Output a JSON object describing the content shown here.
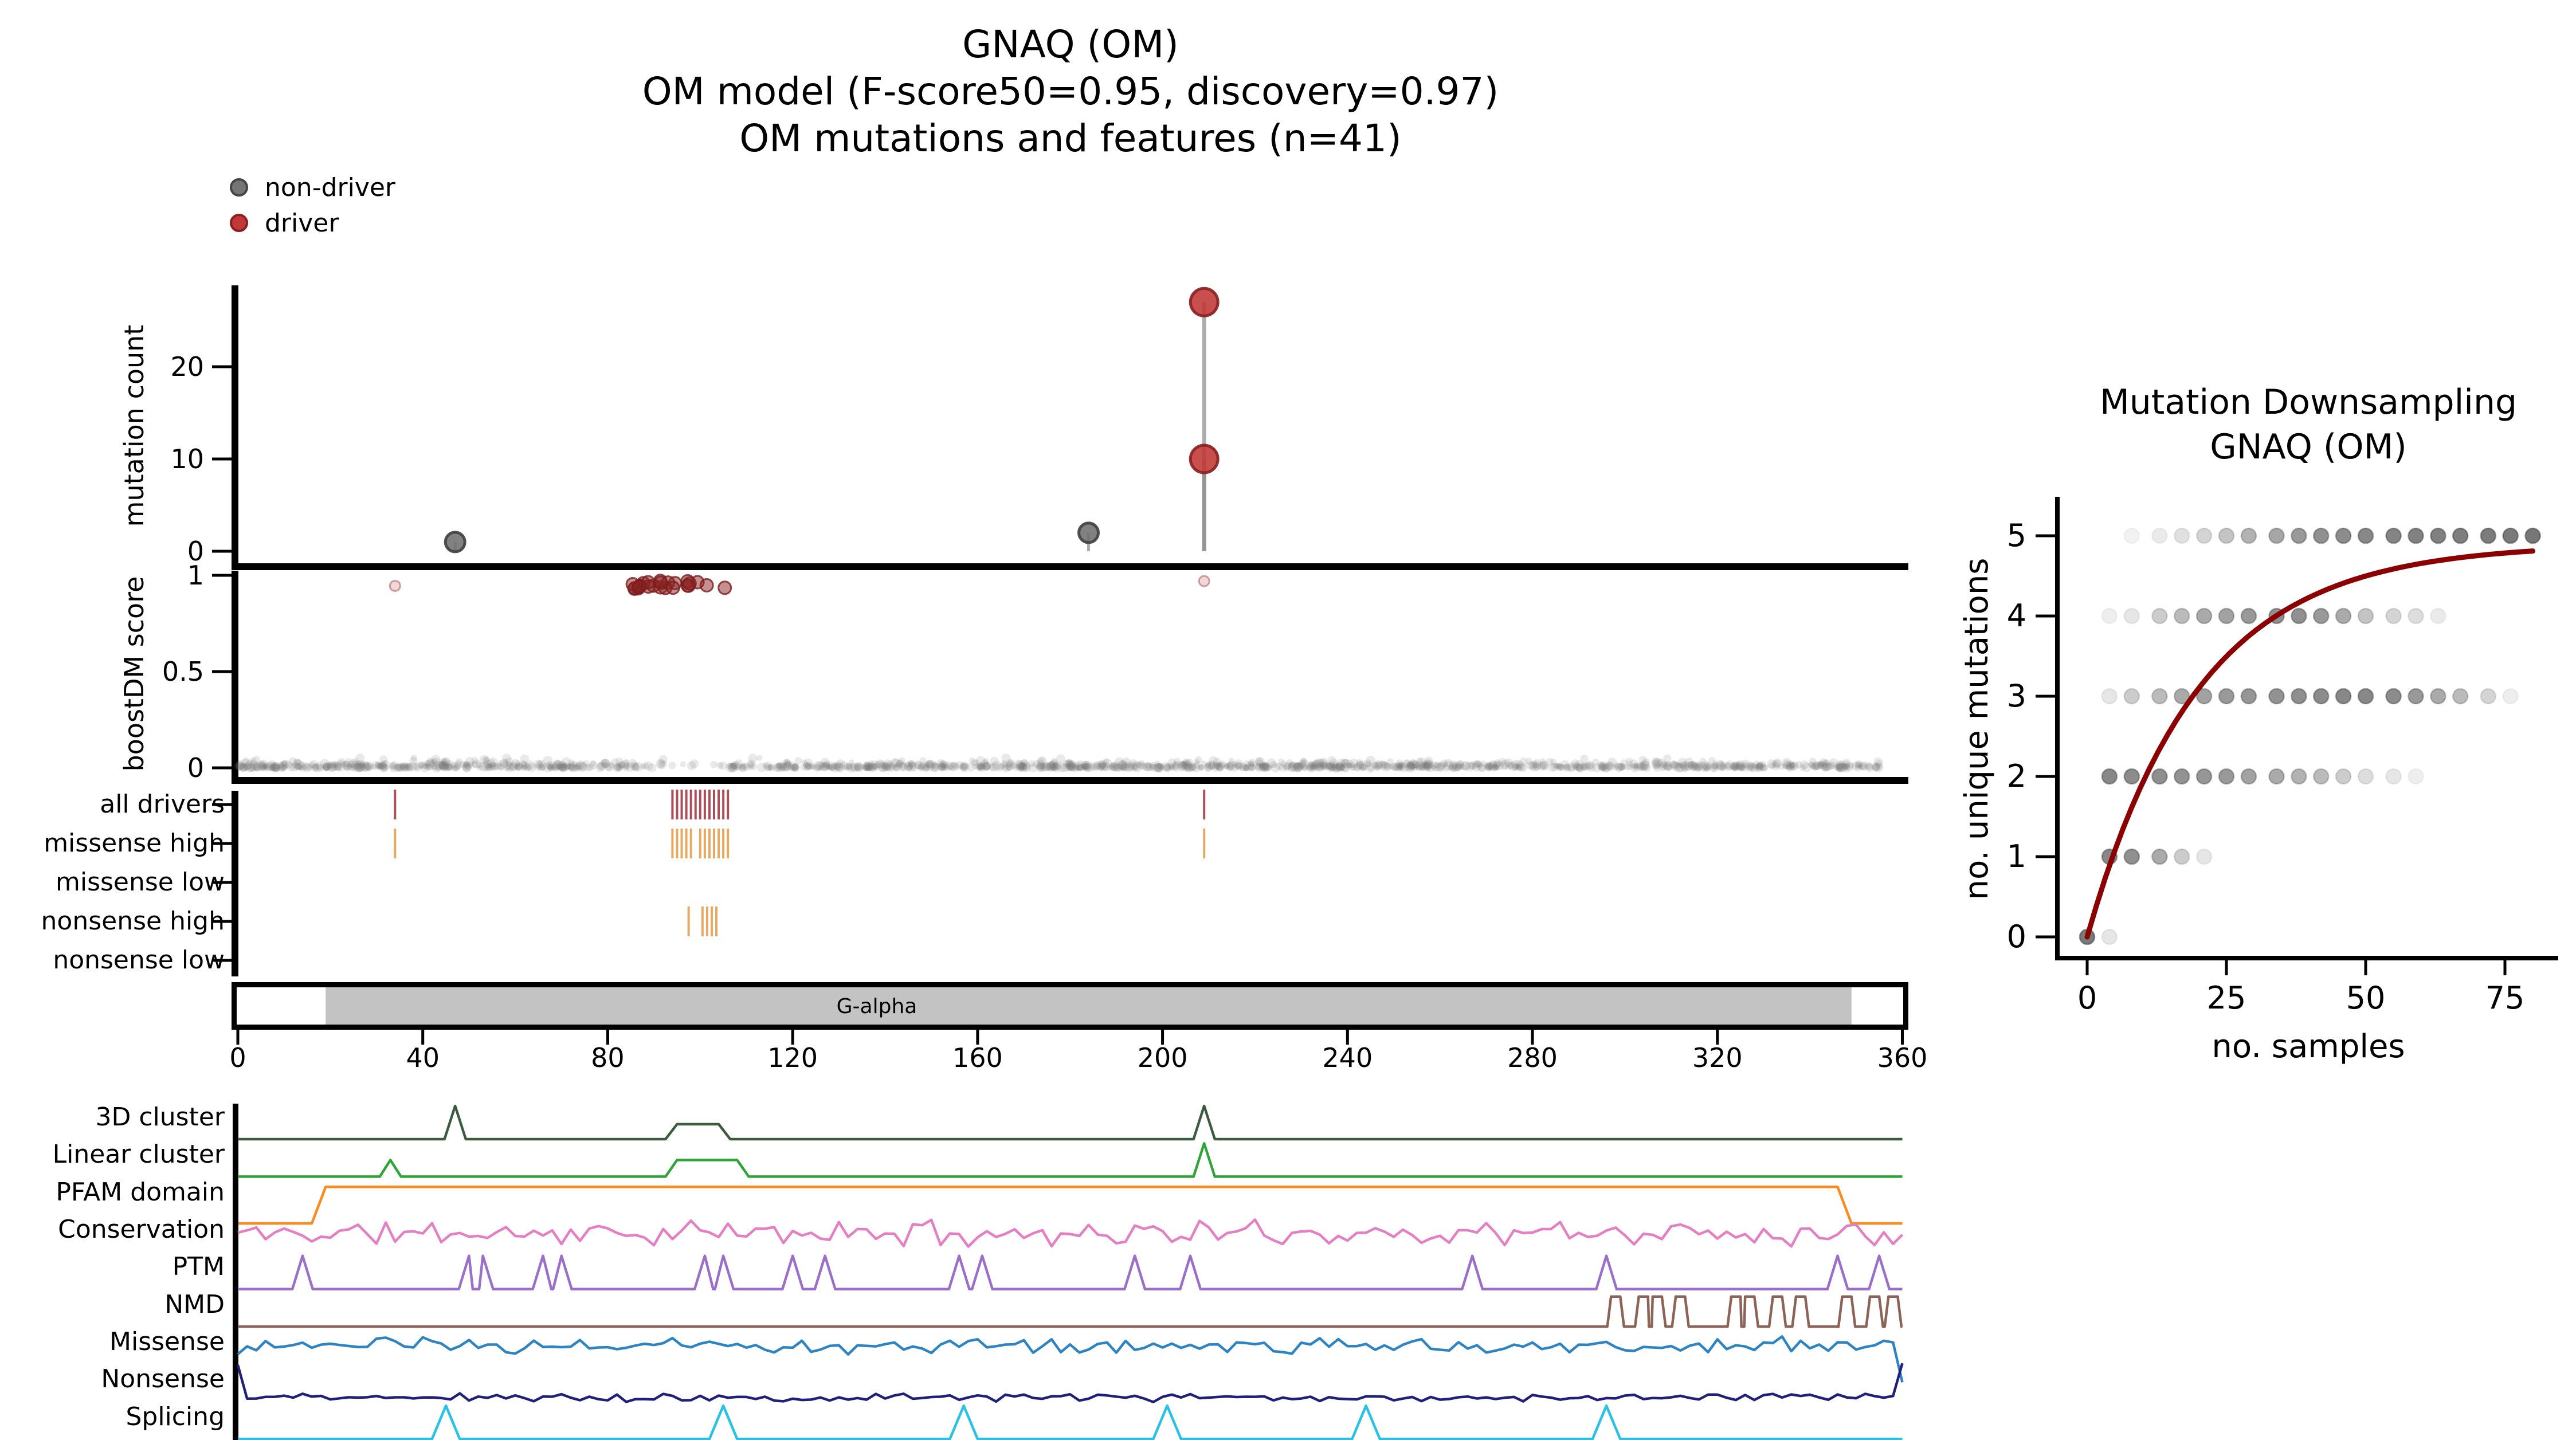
{
  "title": {
    "line1": "GNAQ (OM)",
    "line2": "OM model (F-score50=0.95, discovery=0.97)",
    "line3": "OM mutations and features (n=41)"
  },
  "legend": {
    "items": [
      {
        "label": "non-driver",
        "color": "#757575",
        "edge": "#454545"
      },
      {
        "label": "driver",
        "color": "#c23737",
        "edge": "#8a1f1f"
      }
    ]
  },
  "colors": {
    "axis": "#000000",
    "stem": "#8a8a8a",
    "nondriver_dot": "#707070",
    "driver_dot": "#c23737",
    "boost_cluster": "#8b2222",
    "all_drivers_tick": "#9e2f3d",
    "high_impact_tick": "#e09a47",
    "domain_fill": "#c3c3c3",
    "downsampling_curve": "#8b0000"
  },
  "chart_data": [
    {
      "id": "needle_plot",
      "type": "scatter",
      "ylabel": "mutation count",
      "yticks": [
        0,
        10,
        20
      ],
      "ylim": [
        0,
        29
      ],
      "xlim": [
        0,
        360
      ],
      "points": [
        {
          "pos": 47,
          "count": 1,
          "class": "non-driver"
        },
        {
          "pos": 184,
          "count": 2,
          "class": "non-driver"
        },
        {
          "pos": 209,
          "count": 10,
          "class": "driver"
        },
        {
          "pos": 209,
          "count": 27,
          "class": "driver"
        }
      ]
    },
    {
      "id": "boostdm_scores",
      "type": "scatter",
      "ylabel": "boostDM score",
      "yticks": [
        0,
        0.5,
        1
      ],
      "ylim": [
        0,
        1
      ],
      "driver_cluster": {
        "pos_range": [
          85,
          107
        ],
        "score_range": [
          0.93,
          0.975
        ],
        "n": 25
      },
      "driver_outliers": [
        {
          "pos": 34,
          "score": 0.945
        },
        {
          "pos": 209,
          "score": 0.97
        }
      ],
      "nondriver_band": {
        "pos_range": [
          0,
          355
        ],
        "score_range": [
          0,
          0.06
        ],
        "n": 1500,
        "note": "dense non-driver scores near 0"
      }
    },
    {
      "id": "driver_tracks",
      "type": "ticks",
      "rows": [
        {
          "label": "all drivers",
          "color": "#9e2f3d",
          "positions": [
            34,
            94,
            95,
            96,
            97,
            98,
            99,
            100,
            101,
            102,
            103,
            104,
            105,
            106,
            209
          ]
        },
        {
          "label": "missense high",
          "color": "#e09a47",
          "positions": [
            34,
            94,
            95,
            96,
            97,
            98,
            100,
            101,
            102,
            103,
            104,
            105,
            106,
            209
          ]
        },
        {
          "label": "missense low",
          "color": "#e09a47",
          "positions": []
        },
        {
          "label": "nonsense high",
          "color": "#e09a47",
          "positions": [
            97.5,
            100.5,
            101.5,
            102.5,
            103.5
          ]
        },
        {
          "label": "nonsense low",
          "color": "#e09a47",
          "positions": []
        }
      ]
    },
    {
      "id": "protein_domain",
      "type": "domain_bar",
      "protein_length": 360,
      "domains": [
        {
          "name": "G-alpha",
          "start": 19,
          "end": 349,
          "color": "#c3c3c3",
          "label_pos": 138
        }
      ],
      "xticks": [
        0,
        40,
        80,
        120,
        160,
        200,
        240,
        280,
        320,
        360
      ]
    },
    {
      "id": "feature_tracks",
      "type": "line-tracks",
      "x_range": [
        0,
        360
      ],
      "tracks": [
        {
          "label": "3D cluster",
          "color": "#3c5a3e",
          "kind": "peaks",
          "peaks": [
            {
              "pos": 47,
              "h": 1
            },
            {
              "pos": 209,
              "h": 1
            }
          ],
          "plateaus": [
            {
              "start": 95,
              "end": 104,
              "h": 0.45
            }
          ]
        },
        {
          "label": "Linear cluster",
          "color": "#2fa437",
          "kind": "peaks",
          "peaks": [
            {
              "pos": 33,
              "h": 0.5
            },
            {
              "pos": 209,
              "h": 1
            }
          ],
          "plateaus": [
            {
              "start": 95,
              "end": 108,
              "h": 0.5
            }
          ]
        },
        {
          "label": "PFAM domain",
          "color": "#fb8b1e",
          "kind": "step",
          "high_start": 18,
          "high_end": 347
        },
        {
          "label": "Conservation",
          "color": "#e57fc3",
          "kind": "noise",
          "mean": 0.55,
          "amp": 0.45,
          "seed": 11
        },
        {
          "label": "PTM",
          "color": "#9a6fc9",
          "kind": "spikes",
          "positions": [
            14,
            50,
            53,
            66,
            70,
            101,
            105,
            120,
            127,
            156,
            161,
            194,
            206,
            267,
            296,
            346,
            355
          ],
          "h": 1
        },
        {
          "label": "NMD",
          "color": "#8d6358",
          "kind": "pulses",
          "positions": [
            298,
            304,
            307,
            312,
            324,
            327,
            333,
            338,
            348,
            354,
            358
          ],
          "h": 0.9
        },
        {
          "label": "Missense",
          "color": "#2e84c2",
          "kind": "noise",
          "mean": 0.55,
          "amp": 0.3,
          "seed": 23,
          "end_dip": true
        },
        {
          "label": "Nonsense",
          "color": "#20207a",
          "kind": "noise",
          "mean": 0.12,
          "amp": 0.14,
          "seed": 37,
          "start_spike": true,
          "end_spike": true
        },
        {
          "label": "Splicing",
          "color": "#29c2e6",
          "kind": "spikes",
          "positions": [
            45,
            105,
            157,
            201,
            244,
            296
          ],
          "h": 1
        }
      ]
    },
    {
      "id": "mutation_downsampling",
      "type": "scatter",
      "title_line1": "Mutation Downsampling",
      "title_line2": "GNAQ (OM)",
      "xlabel": "no. samples",
      "ylabel": "no. unique mutations",
      "xticks": [
        0,
        25,
        50,
        75
      ],
      "yticks": [
        0,
        1,
        2,
        3,
        4,
        5
      ],
      "xlim": [
        0,
        82
      ],
      "ylim": [
        0,
        5.3
      ],
      "dot_rows": [
        {
          "y": 0,
          "x": [
            0,
            4
          ],
          "alpha": [
            0.78,
            0.15
          ]
        },
        {
          "y": 1,
          "x": [
            4,
            8,
            13,
            17,
            21
          ],
          "alpha": [
            0.7,
            0.65,
            0.5,
            0.3,
            0.15
          ]
        },
        {
          "y": 2,
          "x": [
            4,
            8,
            13,
            17,
            21,
            25,
            29,
            34,
            38,
            42,
            46,
            50,
            55,
            59
          ],
          "alpha": [
            0.7,
            0.68,
            0.66,
            0.64,
            0.62,
            0.6,
            0.55,
            0.5,
            0.45,
            0.4,
            0.3,
            0.2,
            0.15,
            0.1
          ]
        },
        {
          "y": 3,
          "x": [
            4,
            8,
            13,
            17,
            21,
            25,
            29,
            34,
            38,
            42,
            46,
            50,
            55,
            59,
            63,
            67,
            72,
            76
          ],
          "alpha": [
            0.15,
            0.3,
            0.4,
            0.5,
            0.55,
            0.6,
            0.62,
            0.64,
            0.66,
            0.68,
            0.7,
            0.7,
            0.68,
            0.6,
            0.5,
            0.4,
            0.25,
            0.1
          ]
        },
        {
          "y": 4,
          "x": [
            4,
            8,
            13,
            17,
            21,
            25,
            29,
            34,
            38,
            42,
            46,
            50,
            55,
            59,
            63
          ],
          "alpha": [
            0.1,
            0.15,
            0.3,
            0.4,
            0.5,
            0.55,
            0.6,
            0.65,
            0.65,
            0.6,
            0.5,
            0.35,
            0.25,
            0.2,
            0.12
          ]
        },
        {
          "y": 5,
          "x": [
            8,
            13,
            17,
            21,
            25,
            29,
            34,
            38,
            42,
            46,
            50,
            55,
            59,
            63,
            67,
            72,
            76,
            80
          ],
          "alpha": [
            0.08,
            0.12,
            0.18,
            0.25,
            0.35,
            0.45,
            0.52,
            0.6,
            0.65,
            0.68,
            0.7,
            0.72,
            0.74,
            0.75,
            0.76,
            0.77,
            0.78,
            0.8
          ]
        }
      ],
      "fit_curve": {
        "formula": "y = a*(1-exp(-x/k))",
        "a": 4.9,
        "k": 20,
        "x_max": 80,
        "color": "#8b0000"
      }
    }
  ]
}
